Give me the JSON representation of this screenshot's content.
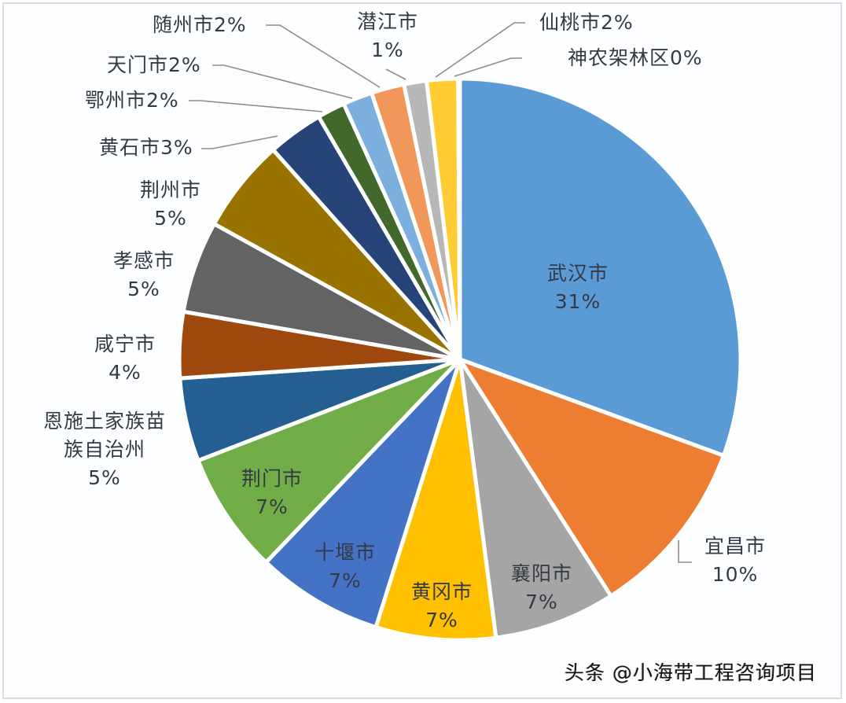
{
  "chart_data": {
    "type": "pie",
    "title": "",
    "start_angle_deg": 0,
    "direction": "clockwise",
    "center": [
      585,
      457
    ],
    "radius": 357,
    "slices": [
      {
        "label": "武汉市",
        "percent_label": "31%",
        "value": 30.6,
        "color": "#5B9BD5"
      },
      {
        "label": "宜昌市",
        "percent_label": "10%",
        "value": 10.4,
        "color": "#ED7D31"
      },
      {
        "label": "襄阳市",
        "percent_label": "7%",
        "value": 7.0,
        "color": "#A5A5A5"
      },
      {
        "label": "黄冈市",
        "percent_label": "7%",
        "value": 6.9,
        "color": "#FFC000"
      },
      {
        "label": "十堰市",
        "percent_label": "7%",
        "value": 7.3,
        "color": "#4472C4"
      },
      {
        "label": "荆门市",
        "percent_label": "7%",
        "value": 7.0,
        "color": "#70AD47"
      },
      {
        "label": "恩施土家族苗族自治州",
        "percent_label": "5%",
        "value": 4.8,
        "color": "#255E91"
      },
      {
        "label": "咸宁市",
        "percent_label": "4%",
        "value": 3.8,
        "color": "#9E480E"
      },
      {
        "label": "孝感市",
        "percent_label": "5%",
        "value": 5.3,
        "color": "#636363"
      },
      {
        "label": "荆州市",
        "percent_label": "5%",
        "value": 5.4,
        "color": "#997300"
      },
      {
        "label": "黄石市",
        "percent_label": "3%",
        "value": 3.2,
        "color": "#264478"
      },
      {
        "label": "鄂州市",
        "percent_label": "2%",
        "value": 1.6,
        "color": "#43682B"
      },
      {
        "label": "天门市",
        "percent_label": "2%",
        "value": 1.7,
        "color": "#7CAFDD"
      },
      {
        "label": "随州市",
        "percent_label": "2%",
        "value": 1.9,
        "color": "#F1975A"
      },
      {
        "label": "潜江市",
        "percent_label": "1%",
        "value": 1.3,
        "color": "#B7B7B7"
      },
      {
        "label": "仙桃市",
        "percent_label": "2%",
        "value": 1.8,
        "color": "#FFCD33"
      },
      {
        "label": "神农架林区",
        "percent_label": "0%",
        "value": 0.1,
        "color": "#5E9CD3"
      }
    ],
    "legend": "none",
    "data_labels": "category name + percentage"
  },
  "labels": {
    "wuhan": {
      "name": "武汉市",
      "pct": "31%"
    },
    "yichang": {
      "name": "宜昌市",
      "pct": "10%"
    },
    "xiangyang": {
      "name": "襄阳市",
      "pct": "7%"
    },
    "huanggang": {
      "name": "黄冈市",
      "pct": "7%"
    },
    "shiyan": {
      "name": "十堰市",
      "pct": "7%"
    },
    "jingmen": {
      "name": "荆门市",
      "pct": "7%"
    },
    "enshi": {
      "line1": "恩施土家族苗",
      "line2": "族自治州",
      "pct": "5%"
    },
    "xianning": {
      "name": "咸宁市",
      "pct": "4%"
    },
    "xiaogan": {
      "name": "孝感市",
      "pct": "5%"
    },
    "jingzhou": {
      "name": "荆州市",
      "pct": "5%"
    },
    "huangshi": "黄石市3%",
    "ezhou": "鄂州市2%",
    "tianmen": "天门市2%",
    "suizhou": "随州市2%",
    "qianjiang": {
      "name": "潜江市",
      "pct": "1%"
    },
    "xiantao": "仙桃市2%",
    "shennongjia": "神农架林区0%"
  },
  "leader_color": "#8c8c8c",
  "watermark": "头条 @小海带工程咨询项目"
}
